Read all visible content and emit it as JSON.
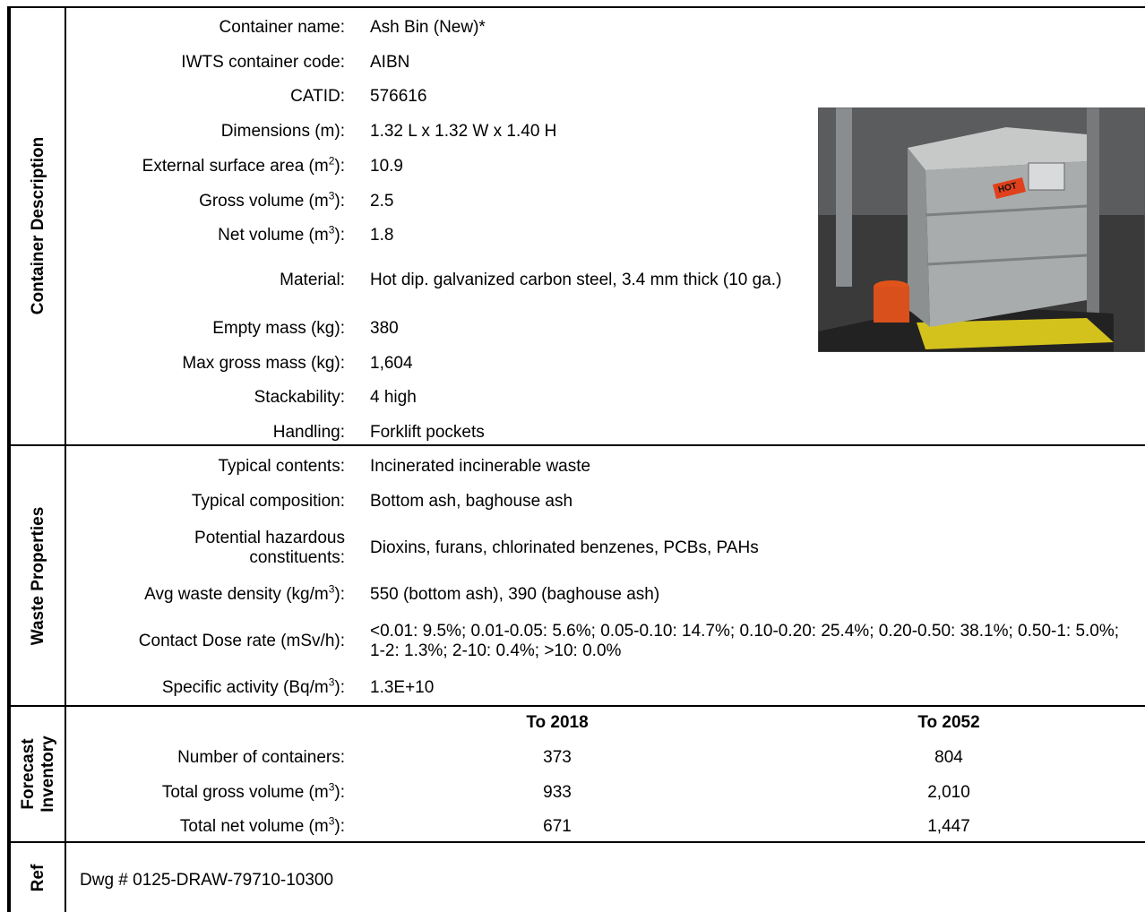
{
  "sections": [
    {
      "title": "Container Description",
      "rows": [
        {
          "label": "Container name:",
          "value": "Ash Bin (New)*"
        },
        {
          "label": "IWTS container code:",
          "value": "AIBN"
        },
        {
          "label": "CATID:",
          "value": "576616"
        },
        {
          "label": "Dimensions (m):",
          "value": "1.32 L x 1.32 W x 1.40 H"
        },
        {
          "label": [
            "External surface area (m",
            "2",
            "):"
          ],
          "value": "10.9"
        },
        {
          "label": [
            "Gross volume (m",
            "3",
            "):"
          ],
          "value": "2.5"
        },
        {
          "label": [
            "Net volume (m",
            "3",
            "):"
          ],
          "value": "1.8"
        },
        {
          "label": "Material:",
          "value": "Hot dip. galvanized carbon steel, 3.4 mm thick (10 ga.)"
        },
        {
          "label": "Empty mass (kg):",
          "value": "380"
        },
        {
          "label": "Max gross mass (kg):",
          "value": "1,604"
        },
        {
          "label": "Stackability:",
          "value": "4 high"
        },
        {
          "label": "Handling:",
          "value": "Forklift pockets"
        }
      ]
    },
    {
      "title": "Waste Properties",
      "rows": [
        {
          "label": "Typical contents:",
          "value": "Incinerated incinerable waste"
        },
        {
          "label": "Typical composition:",
          "value": "Bottom ash, baghouse ash"
        },
        {
          "label": "Potential hazardous constituents:",
          "value": "Dioxins, furans, chlorinated benzenes, PCBs, PAHs"
        },
        {
          "label": [
            "Avg waste density (kg/m",
            "3",
            "):"
          ],
          "value": "550 (bottom ash), 390 (baghouse ash)"
        },
        {
          "label": "Contact Dose rate (mSv/h):",
          "value": "<0.01: 9.5%; 0.01-0.05: 5.6%; 0.05-0.10: 14.7%; 0.10-0.20: 25.4%; 0.20-0.50: 38.1%; 0.50-1: 5.0%; 1-2: 1.3%; 2-10: 0.4%; >10: 0.0%"
        },
        {
          "label": [
            "Specific activity (Bq/m",
            "3",
            "):"
          ],
          "value": "1.3E+10"
        }
      ]
    },
    {
      "title": [
        "Forecast",
        "Inventory"
      ],
      "columns": [
        "To 2018",
        "To 2052"
      ],
      "rows": [
        {
          "label": "Number of containers:",
          "values": [
            "373",
            "804"
          ]
        },
        {
          "label": [
            "Total gross volume (m",
            "3",
            "):"
          ],
          "values": [
            "933",
            "2,010"
          ]
        },
        {
          "label": [
            "Total net volume (m",
            "3",
            "):"
          ],
          "values": [
            "671",
            "1,447"
          ]
        }
      ]
    },
    {
      "title": "Ref",
      "text": "Dwg # 0125-DRAW-79710-10300"
    }
  ],
  "photo": {
    "sign": "HOT"
  }
}
